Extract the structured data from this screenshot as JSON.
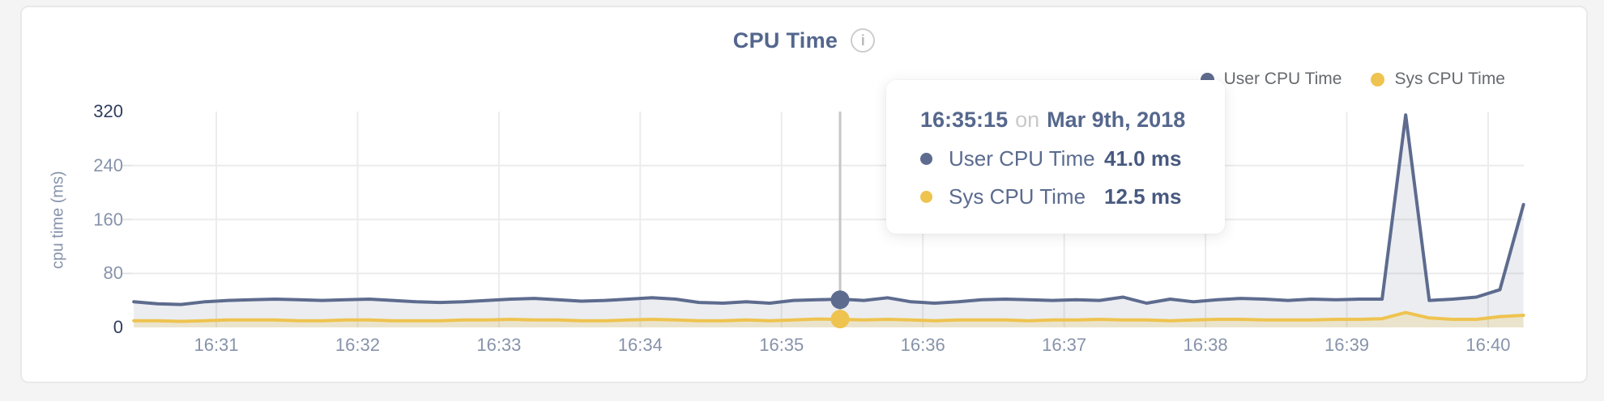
{
  "window": {
    "background": "#f4f4f5"
  },
  "card": {
    "background": "#ffffff",
    "border_color": "#e9e9e9"
  },
  "header": {
    "title": "CPU Time",
    "info_icon_glyph": "i"
  },
  "legend": {
    "items": [
      {
        "label": "User CPU Time",
        "color": "#5d6b8e"
      },
      {
        "label": "Sys CPU Time",
        "color": "#eec34f"
      }
    ]
  },
  "tooltip": {
    "time": "16:35:15",
    "conjunction": "on",
    "date": "Mar 9th, 2018",
    "rows": [
      {
        "label": "User CPU Time",
        "value": "41.0 ms",
        "color": "#5d6b8e"
      },
      {
        "label": "Sys CPU Time",
        "value": "12.5 ms",
        "color": "#eec34f"
      }
    ]
  },
  "chart_data": {
    "type": "line",
    "title": "CPU Time",
    "xlabel": "",
    "ylabel": "cpu time (ms)",
    "ylim": [
      0,
      320
    ],
    "yticks": [
      0,
      80,
      160,
      240,
      320
    ],
    "ytick_emphasized": [
      0,
      320
    ],
    "xticks": [
      "16:31",
      "16:32",
      "16:33",
      "16:34",
      "16:35",
      "16:36",
      "16:37",
      "16:38",
      "16:39",
      "16:40"
    ],
    "grid": true,
    "legend_position": "top-right",
    "sampling_interval_seconds": 10,
    "x_times": [
      "16:30:25",
      "16:30:35",
      "16:30:45",
      "16:30:55",
      "16:31:05",
      "16:31:15",
      "16:31:25",
      "16:31:35",
      "16:31:45",
      "16:31:55",
      "16:32:05",
      "16:32:15",
      "16:32:25",
      "16:32:35",
      "16:32:45",
      "16:32:55",
      "16:33:05",
      "16:33:15",
      "16:33:25",
      "16:33:35",
      "16:33:45",
      "16:33:55",
      "16:34:05",
      "16:34:15",
      "16:34:25",
      "16:34:35",
      "16:34:45",
      "16:34:55",
      "16:35:05",
      "16:35:15",
      "16:35:25",
      "16:35:35",
      "16:35:45",
      "16:35:55",
      "16:36:05",
      "16:36:15",
      "16:36:25",
      "16:36:35",
      "16:36:45",
      "16:36:55",
      "16:37:05",
      "16:37:15",
      "16:37:25",
      "16:37:35",
      "16:37:45",
      "16:37:55",
      "16:38:05",
      "16:38:15",
      "16:38:25",
      "16:38:35",
      "16:38:45",
      "16:38:55",
      "16:39:05",
      "16:39:15",
      "16:39:25",
      "16:39:35",
      "16:39:45",
      "16:39:55",
      "16:40:05",
      "16:40:15"
    ],
    "series": [
      {
        "name": "User CPU Time",
        "color": "#5d6b8e",
        "fill": "rgba(93,107,142,0.12)",
        "values": [
          38,
          35,
          34,
          38,
          40,
          41,
          42,
          41,
          40,
          41,
          42,
          40,
          38,
          37,
          38,
          40,
          42,
          43,
          41,
          39,
          40,
          42,
          44,
          42,
          37,
          36,
          38,
          36,
          40,
          41,
          42,
          40,
          44,
          38,
          36,
          38,
          41,
          42,
          41,
          40,
          41,
          40,
          45,
          36,
          42,
          38,
          41,
          43,
          42,
          40,
          42,
          41,
          42,
          42,
          315,
          40,
          42,
          45,
          56,
          182
        ]
      },
      {
        "name": "Sys CPU Time",
        "color": "#eec34f",
        "fill": "rgba(238,195,79,0.22)",
        "values": [
          10,
          10,
          9,
          10,
          11,
          11,
          11,
          10,
          10,
          11,
          11,
          10,
          10,
          10,
          11,
          11,
          12,
          11,
          11,
          10,
          10,
          11,
          12,
          11,
          10,
          10,
          11,
          10,
          11,
          12.5,
          12,
          11,
          12,
          11,
          10,
          11,
          11,
          11,
          10,
          11,
          11,
          12,
          11,
          11,
          10,
          11,
          12,
          12,
          11,
          11,
          11,
          12,
          12,
          13,
          22,
          14,
          12,
          12,
          16,
          18
        ]
      }
    ],
    "hover_point": {
      "time": "16:35:15",
      "date": "Mar 9th, 2018",
      "values": {
        "User CPU Time": 41.0,
        "Sys CPU Time": 12.5
      }
    }
  }
}
